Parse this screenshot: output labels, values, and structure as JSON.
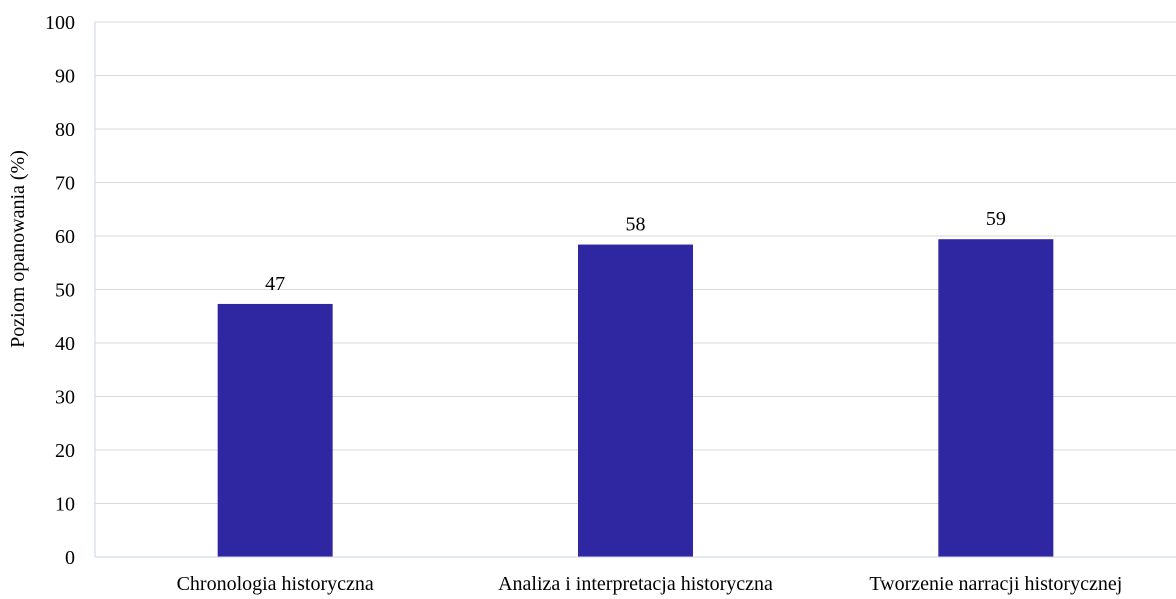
{
  "chart_data": {
    "type": "bar",
    "categories": [
      "Chronologia historyczna",
      "Analiza i interpretacja historyczna",
      "Tworzenie narracji historycznej"
    ],
    "values": [
      47.3,
      58.4,
      59.4
    ],
    "data_labels": [
      "47",
      "58",
      "59"
    ],
    "title": "",
    "xlabel": "",
    "ylabel": "Poziom opanowania (%)",
    "ylim": [
      0,
      100
    ],
    "yticks": [
      "0",
      "10",
      "20",
      "30",
      "40",
      "50",
      "60",
      "70",
      "80",
      "90",
      "100"
    ],
    "grid": true,
    "legend": "none",
    "colors": {
      "bar": "#2e27a1",
      "grid": "#d9d9d9",
      "axis": "#c9d3e6"
    }
  }
}
